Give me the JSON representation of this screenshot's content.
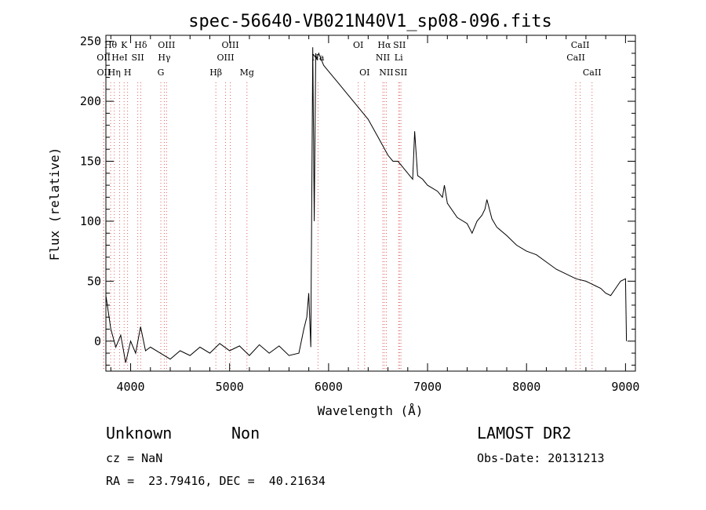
{
  "chart_data": {
    "type": "line",
    "title": "spec-56640-VB021N40V1_sp08-096.fits",
    "xlabel": "Wavelength (Å)",
    "ylabel": "Flux (relative)",
    "xlim": [
      3750,
      9100
    ],
    "ylim": [
      -25,
      255
    ],
    "x_ticks": [
      4000,
      5000,
      6000,
      7000,
      8000,
      9000
    ],
    "y_ticks": [
      0,
      50,
      100,
      150,
      200,
      250
    ],
    "grid": false,
    "series": [
      {
        "x": [
          3750,
          3800,
          3850,
          3900,
          3950,
          4000,
          4050,
          4100,
          4150,
          4200,
          4300,
          4400,
          4500,
          4600,
          4700,
          4800,
          4900,
          5000,
          5100,
          5200,
          5300,
          5400,
          5500,
          5600,
          5700,
          5750,
          5780,
          5800,
          5820,
          5840,
          5855,
          5870,
          5880,
          5900,
          5950,
          6000,
          6100,
          6200,
          6300,
          6400,
          6500,
          6600,
          6650,
          6700,
          6750,
          6800,
          6850,
          6870,
          6900,
          6950,
          7000,
          7100,
          7150,
          7170,
          7200,
          7300,
          7400,
          7450,
          7500,
          7550,
          7580,
          7600,
          7650,
          7700,
          7800,
          7900,
          8000,
          8100,
          8200,
          8300,
          8400,
          8500,
          8600,
          8650,
          8700,
          8750,
          8800,
          8850,
          8900,
          8950,
          9000,
          9010
        ],
        "y": [
          38,
          10,
          -5,
          5,
          -18,
          0,
          -10,
          12,
          -8,
          -5,
          -10,
          -15,
          -8,
          -12,
          -5,
          -10,
          -2,
          -8,
          -4,
          -12,
          -3,
          -10,
          -4,
          -12,
          -10,
          10,
          20,
          40,
          -5,
          245,
          100,
          240,
          235,
          240,
          230,
          225,
          215,
          205,
          195,
          185,
          170,
          155,
          150,
          150,
          145,
          140,
          135,
          175,
          138,
          135,
          130,
          125,
          120,
          130,
          115,
          103,
          98,
          90,
          100,
          105,
          110,
          118,
          102,
          95,
          88,
          80,
          75,
          72,
          66,
          60,
          56,
          52,
          50,
          48,
          46,
          44,
          40,
          38,
          44,
          50,
          52,
          0
        ]
      }
    ],
    "spectral_lines": [
      {
        "label": "Hθ",
        "wavelength": 3798,
        "row": 1
      },
      {
        "label": "OII",
        "wavelength": 3727,
        "row": 2
      },
      {
        "label": "OII",
        "wavelength": 3729,
        "row": 3
      },
      {
        "label": "K",
        "wavelength": 3934,
        "row": 1
      },
      {
        "label": "HeI",
        "wavelength": 3889,
        "row": 2
      },
      {
        "label": "Hη",
        "wavelength": 3835,
        "row": 3
      },
      {
        "label": "SII",
        "wavelength": 4072,
        "row": 2
      },
      {
        "label": "H",
        "wavelength": 3969,
        "row": 3
      },
      {
        "label": "Hδ",
        "wavelength": 4102,
        "row": 1
      },
      {
        "label": "OIII",
        "wavelength": 4363,
        "row": 1
      },
      {
        "label": "Hγ",
        "wavelength": 4340,
        "row": 2
      },
      {
        "label": "G",
        "wavelength": 4305,
        "row": 3
      },
      {
        "label": "OIII",
        "wavelength": 5007,
        "row": 1
      },
      {
        "label": "OIII",
        "wavelength": 4959,
        "row": 2
      },
      {
        "label": "Hβ",
        "wavelength": 4861,
        "row": 3
      },
      {
        "label": "Mg",
        "wavelength": 5175,
        "row": 3
      },
      {
        "label": "Na",
        "wavelength": 5893,
        "row": 2
      },
      {
        "label": "OI",
        "wavelength": 6300,
        "row": 1
      },
      {
        "label": "OI",
        "wavelength": 6364,
        "row": 3
      },
      {
        "label": "Hα",
        "wavelength": 6563,
        "row": 1
      },
      {
        "label": "SII",
        "wavelength": 6716,
        "row": 1
      },
      {
        "label": "NII",
        "wavelength": 6548,
        "row": 2
      },
      {
        "label": "Li",
        "wavelength": 6708,
        "row": 2
      },
      {
        "label": "NII",
        "wavelength": 6583,
        "row": 3
      },
      {
        "label": "SII",
        "wavelength": 6731,
        "row": 3
      },
      {
        "label": "CaII",
        "wavelength": 8542,
        "row": 1
      },
      {
        "label": "CaII",
        "wavelength": 8498,
        "row": 2
      },
      {
        "label": "CaII",
        "wavelength": 8662,
        "row": 3
      }
    ],
    "colors": {
      "line": "#000000",
      "marker": "#e06060"
    }
  },
  "footer": {
    "classification": "Unknown",
    "subclass": "Non",
    "survey": "LAMOST DR2",
    "cz": "cz = NaN",
    "obs_date": "Obs-Date: 20131213",
    "coords": "RA =  23.79416, DEC =  40.21634"
  }
}
